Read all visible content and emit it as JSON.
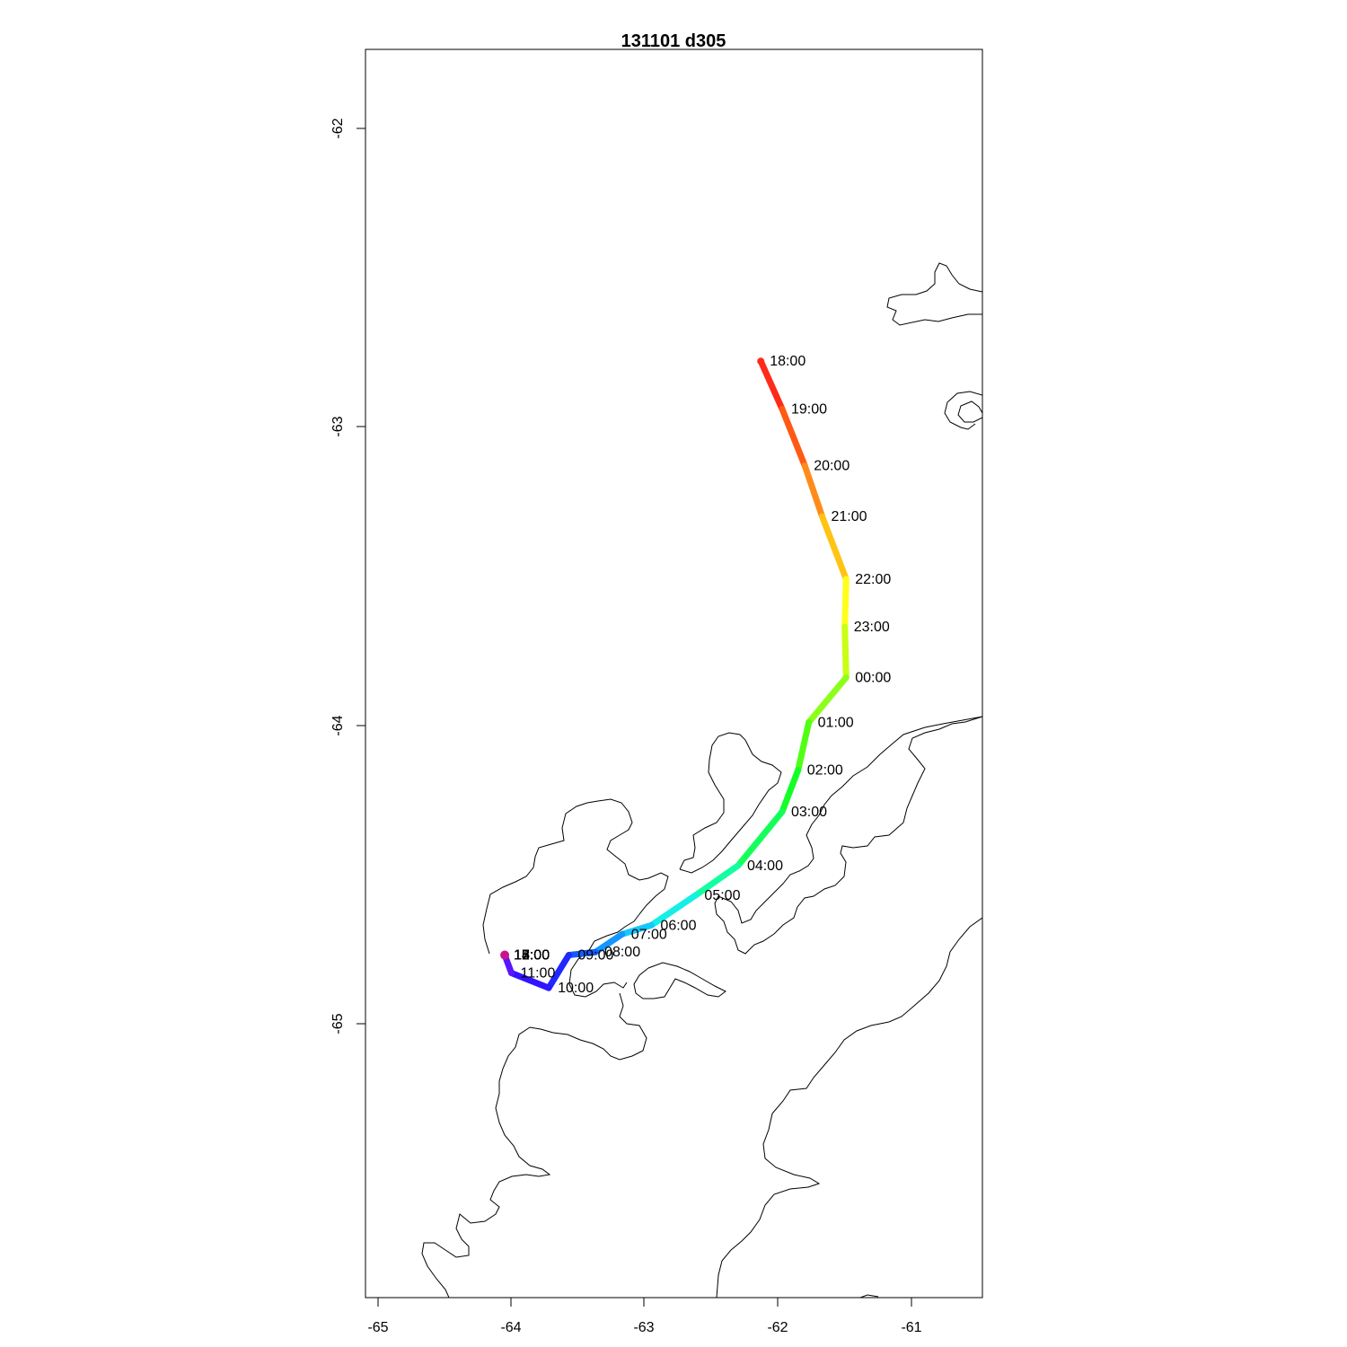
{
  "title": "131101   d305",
  "chart_data": {
    "type": "track-map",
    "title": "131101   d305",
    "x_ticks": [
      "-65",
      "-64",
      "-63",
      "-62",
      "-61"
    ],
    "y_ticks": [
      "-62",
      "-63",
      "-64",
      "-65"
    ],
    "xlim": [
      -65.1,
      -60.5
    ],
    "ylim": [
      -65.91,
      -61.73
    ],
    "track_color_scale": "rainbow (red → violet over time)",
    "track": [
      {
        "time": "18:00",
        "lon": -62.13,
        "lat": -62.78,
        "color": "#ff2a1a"
      },
      {
        "time": "19:00",
        "lon": -61.97,
        "lat": -62.94,
        "color": "#ff5a14"
      },
      {
        "time": "20:00",
        "lon": -61.8,
        "lat": -63.13,
        "color": "#ff8c1a"
      },
      {
        "time": "21:00",
        "lon": -61.67,
        "lat": -63.3,
        "color": "#ffc414"
      },
      {
        "time": "22:00",
        "lon": -61.49,
        "lat": -63.51,
        "color": "#ffff1a"
      },
      {
        "time": "23:00",
        "lon": -61.5,
        "lat": -63.67,
        "color": "#c8ff14"
      },
      {
        "time": "00:00",
        "lon": -61.49,
        "lat": -63.84,
        "color": "#8cff1a"
      },
      {
        "time": "01:00",
        "lon": -61.77,
        "lat": -63.99,
        "color": "#50ff14"
      },
      {
        "time": "02:00",
        "lon": -61.85,
        "lat": -64.15,
        "color": "#14ff28"
      },
      {
        "time": "03:00",
        "lon": -61.97,
        "lat": -64.29,
        "color": "#14ff5a"
      },
      {
        "time": "04:00",
        "lon": -62.3,
        "lat": -64.47,
        "color": "#14ffa0"
      },
      {
        "time": "05:00",
        "lon": -62.62,
        "lat": -64.57,
        "color": "#14f0e6"
      },
      {
        "time": "06:00",
        "lon": -62.95,
        "lat": -64.67,
        "color": "#14c8ff"
      },
      {
        "time": "07:00",
        "lon": -63.17,
        "lat": -64.7,
        "color": "#1496ff"
      },
      {
        "time": "08:00",
        "lon": -63.37,
        "lat": -64.76,
        "color": "#145aff"
      },
      {
        "time": "09:00",
        "lon": -63.57,
        "lat": -64.77,
        "color": "#1e28ff"
      },
      {
        "time": "10:00",
        "lon": -63.72,
        "lat": -64.88,
        "color": "#3214ff"
      },
      {
        "time": "11:00",
        "lon": -64.0,
        "lat": -64.83,
        "color": "#5a14ff"
      },
      {
        "time": "12:00",
        "lon": -64.05,
        "lat": -64.77,
        "color": "#8214f0"
      },
      {
        "time": "13:00",
        "lon": -64.05,
        "lat": -64.77,
        "color": "#a014dc"
      },
      {
        "time": "14:00",
        "lon": -64.05,
        "lat": -64.77,
        "color": "#c014c8"
      },
      {
        "time": "15:00",
        "lon": -64.05,
        "lat": -64.77,
        "color": "#dc14a0"
      },
      {
        "time": "16:00",
        "lon": -64.05,
        "lat": -64.77,
        "color": "#f01478"
      },
      {
        "time": "17:00",
        "lon": -64.05,
        "lat": -64.77,
        "color": "#ff1450"
      }
    ],
    "grid": false
  }
}
